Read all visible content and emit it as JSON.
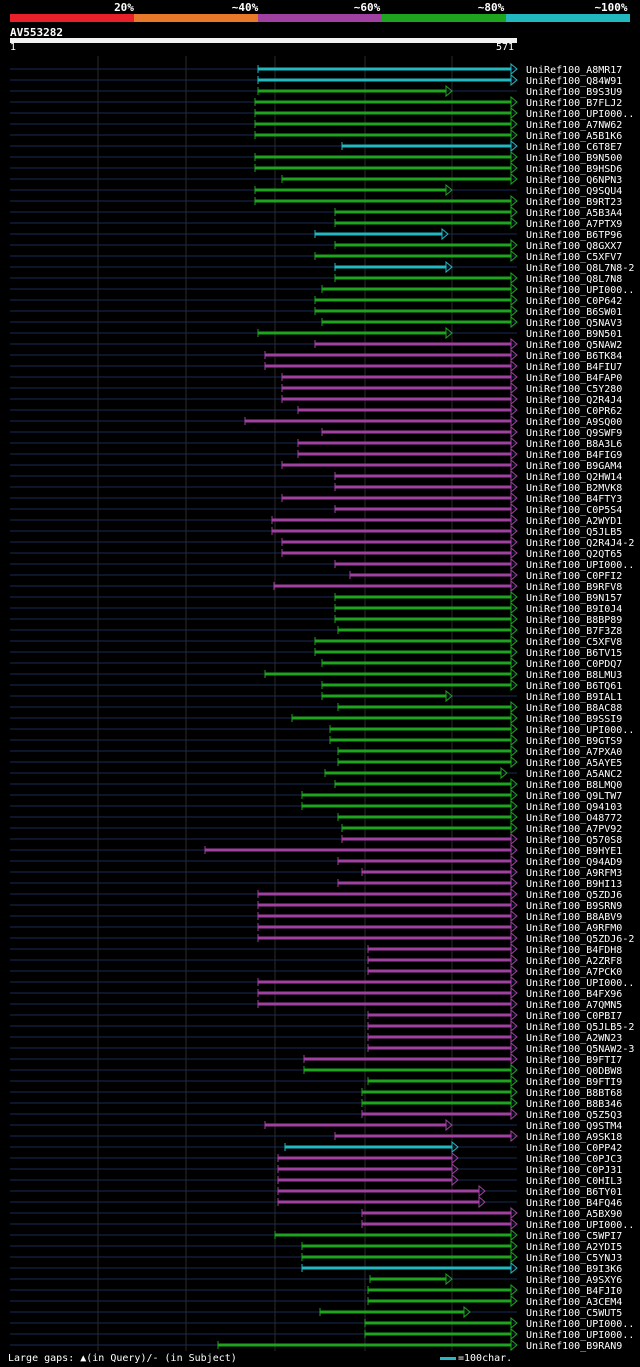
{
  "query": {
    "id": "AV553282",
    "length": 571,
    "start": "1",
    "end": "571"
  },
  "scale": {
    "labels": [
      "20%",
      "~40%",
      "~60%",
      "~80%",
      "~100%"
    ],
    "colors": [
      "#e8202a",
      "#e8782a",
      "#a040a0",
      "#1ea41e",
      "#22b8c0"
    ]
  },
  "footer": {
    "legend": "Large gaps: ▲(in Query)/- (in Subject)",
    "scale_unit": "=100char."
  },
  "hits": [
    "UniRef100_A8MR17",
    "UniRef100_Q84W91",
    "UniRef100_B9S3U9",
    "UniRef100_B7FLJ2",
    "UniRef100_UPI000..",
    "UniRef100_A7NW62",
    "UniRef100_A5B1K6",
    "UniRef100_C6T8E7",
    "UniRef100_B9N500",
    "UniRef100_B9HSD6",
    "UniRef100_Q6NPN3",
    "UniRef100_Q9SQU4",
    "UniRef100_B9RT23",
    "UniRef100_A5B3A4",
    "UniRef100_A7PTX9",
    "UniRef100_B6TP96",
    "UniRef100_Q8GXX7",
    "UniRef100_C5XFV7",
    "UniRef100_Q8L7N8-2",
    "UniRef100_Q8L7N8",
    "UniRef100_UPI000..",
    "UniRef100_C0P642",
    "UniRef100_B6SW01",
    "UniRef100_Q5NAV3",
    "UniRef100_B9N501",
    "UniRef100_Q5NAW2",
    "UniRef100_B6TK84",
    "UniRef100_B4FIU7",
    "UniRef100_B4FAP0",
    "UniRef100_C5Y280",
    "UniRef100_Q2R4J4",
    "UniRef100_C0PR62",
    "UniRef100_A9SQ00",
    "UniRef100_Q9SWF9",
    "UniRef100_B8A3L6",
    "UniRef100_B4FIG9",
    "UniRef100_B9GAM4",
    "UniRef100_Q2HW14",
    "UniRef100_B2MVK8",
    "UniRef100_B4FTY3",
    "UniRef100_C0P5S4",
    "UniRef100_A2WYD1",
    "UniRef100_Q5JLB5",
    "UniRef100_Q2R4J4-2",
    "UniRef100_Q2QT65",
    "UniRef100_UPI000..",
    "UniRef100_C0PFI2",
    "UniRef100_B9RFV8",
    "UniRef100_B9N157",
    "UniRef100_B9I0J4",
    "UniRef100_B8BP89",
    "UniRef100_B7F3Z8",
    "UniRef100_C5XFV8",
    "UniRef100_B6TV15",
    "UniRef100_C0PDQ7",
    "UniRef100_B8LMU3",
    "UniRef100_B6TQ61",
    "UniRef100_B9IAL1",
    "UniRef100_B8AC88",
    "UniRef100_B9SSI9",
    "UniRef100_UPI000..",
    "UniRef100_B9GTS9",
    "UniRef100_A7PXA0",
    "UniRef100_A5AYE5",
    "UniRef100_A5ANC2",
    "UniRef100_B8LMQ0",
    "UniRef100_Q9LTW7",
    "UniRef100_Q94103",
    "UniRef100_O48772",
    "UniRef100_A7PV92",
    "UniRef100_Q570S8",
    "UniRef100_B9HYE1",
    "UniRef100_Q94AD9",
    "UniRef100_A9RFM3",
    "UniRef100_B9HI13",
    "UniRef100_Q5ZDJ6",
    "UniRef100_B9SRN9",
    "UniRef100_B8ABV9",
    "UniRef100_A9RFM0",
    "UniRef100_Q5ZDJ6-2",
    "UniRef100_B4FDH8",
    "UniRef100_A2ZRF8",
    "UniRef100_A7PCK0",
    "UniRef100_UPI000..",
    "UniRef100_B4FX96",
    "UniRef100_A7QMN5",
    "UniRef100_C0PBI7",
    "UniRef100_Q5JLB5-2",
    "UniRef100_A2WN23",
    "UniRef100_Q5NAW2-3",
    "UniRef100_B9FTI7",
    "UniRef100_Q0DBW8",
    "UniRef100_B9FTI9",
    "UniRef100_B8BT68",
    "UniRef100_B8B346",
    "UniRef100_Q5Z5Q3",
    "UniRef100_Q9STM4",
    "UniRef100_A9SK18",
    "UniRef100_C0PP42",
    "UniRef100_C0PJC3",
    "UniRef100_C0PJ31",
    "UniRef100_C0HIL3",
    "UniRef100_B6TY01",
    "UniRef100_B4FQ46",
    "UniRef100_A5BX90",
    "UniRef100_UPI000..",
    "UniRef100_C5WPI7",
    "UniRef100_A2YDI5",
    "UniRef100_C5YNJ3",
    "UniRef100_B9I3K6",
    "UniRef100_A9SXY6",
    "UniRef100_B4FJI0",
    "UniRef100_A3CEM4",
    "UniRef100_C5WUT5",
    "UniRef100_UPI000..",
    "UniRef100_UPI000..",
    "UniRef100_B9RAN9"
  ]
}
